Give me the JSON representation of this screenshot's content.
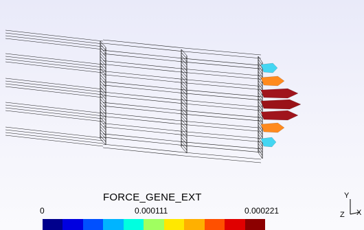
{
  "legend": {
    "title": "FORCE_GENE_EXT",
    "ticks": [
      "0",
      "0.000111",
      "0.000221"
    ],
    "colors": [
      "#00008c",
      "#0000e0",
      "#0050ff",
      "#00b4ff",
      "#00ffe0",
      "#a0ff60",
      "#ffe800",
      "#ffb000",
      "#ff5000",
      "#e00000",
      "#8c0000"
    ]
  },
  "axes": {
    "y": "Y",
    "z": "Z",
    "x": "X"
  },
  "arrows": [
    {
      "level": "low-mid",
      "color": "#44d6f2"
    },
    {
      "level": "high",
      "color": "#ff8a1e"
    },
    {
      "level": "max",
      "color": "#a0141c"
    },
    {
      "level": "max",
      "color": "#9a1218"
    },
    {
      "level": "max",
      "color": "#a0141c"
    },
    {
      "level": "high",
      "color": "#ff8a1e"
    },
    {
      "level": "low-mid",
      "color": "#44d6f2"
    }
  ]
}
